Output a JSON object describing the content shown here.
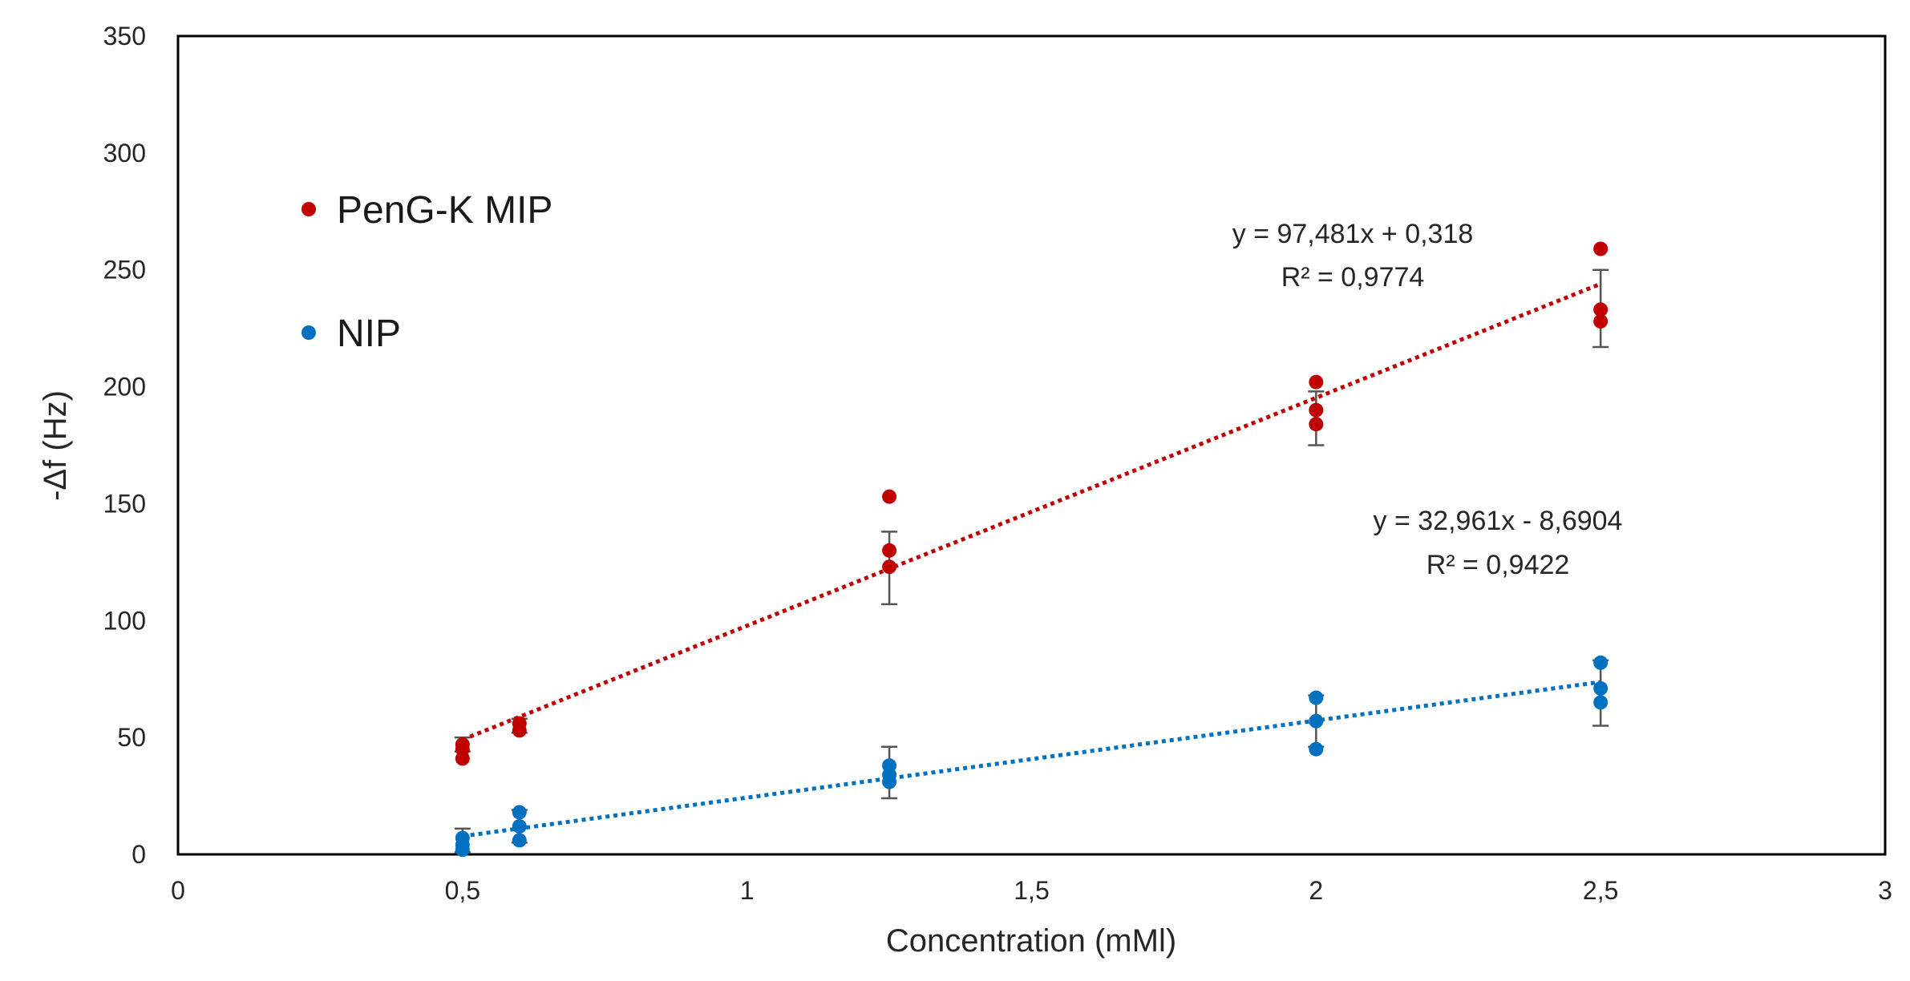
{
  "chart_data": {
    "type": "scatter",
    "title": "",
    "xlabel": "Concentration (mMl)",
    "ylabel": "-Δf (Hz)",
    "xlim": [
      0,
      3
    ],
    "ylim": [
      0,
      350
    ],
    "x_ticks": [
      {
        "value": 0,
        "label": "0"
      },
      {
        "value": 0.5,
        "label": "0,5"
      },
      {
        "value": 1,
        "label": "1"
      },
      {
        "value": 1.5,
        "label": "1,5"
      },
      {
        "value": 2,
        "label": "2"
      },
      {
        "value": 2.5,
        "label": "2,5"
      },
      {
        "value": 3,
        "label": "3"
      }
    ],
    "y_ticks": [
      {
        "value": 0,
        "label": "0"
      },
      {
        "value": 50,
        "label": "50"
      },
      {
        "value": 100,
        "label": "100"
      },
      {
        "value": 150,
        "label": "150"
      },
      {
        "value": 200,
        "label": "200"
      },
      {
        "value": 250,
        "label": "250"
      },
      {
        "value": 300,
        "label": "300"
      },
      {
        "value": 350,
        "label": "350"
      }
    ],
    "grid": false,
    "legend_position": "top-left",
    "series": [
      {
        "name": "PenG-K MIP",
        "color": "#c00000",
        "points": [
          {
            "x": 0.5,
            "y": 47
          },
          {
            "x": 0.5,
            "y": 41
          },
          {
            "x": 0.5,
            "y": 45
          },
          {
            "x": 0.6,
            "y": 56
          },
          {
            "x": 0.6,
            "y": 53
          },
          {
            "x": 1.25,
            "y": 153
          },
          {
            "x": 1.25,
            "y": 130
          },
          {
            "x": 1.25,
            "y": 123
          },
          {
            "x": 2.0,
            "y": 202
          },
          {
            "x": 2.0,
            "y": 190
          },
          {
            "x": 2.0,
            "y": 184
          },
          {
            "x": 2.5,
            "y": 259
          },
          {
            "x": 2.5,
            "y": 233
          },
          {
            "x": 2.5,
            "y": 228
          }
        ],
        "error_bars": [
          {
            "x": 0.5,
            "low": 44,
            "high": 50
          },
          {
            "x": 0.6,
            "low": 52,
            "high": 58
          },
          {
            "x": 1.25,
            "low": 107,
            "high": 138
          },
          {
            "x": 2.0,
            "low": 175,
            "high": 198
          },
          {
            "x": 2.5,
            "low": 217,
            "high": 250
          }
        ],
        "trendline": {
          "slope": 97.481,
          "intercept": 0.318,
          "x_range": [
            0.5,
            2.5
          ]
        },
        "equation": "y = 97,481x + 0,318",
        "r_squared": "R² = 0,9774"
      },
      {
        "name": "NIP",
        "color": "#0070c0",
        "points": [
          {
            "x": 0.5,
            "y": 7
          },
          {
            "x": 0.5,
            "y": 4
          },
          {
            "x": 0.5,
            "y": 2
          },
          {
            "x": 0.6,
            "y": 18
          },
          {
            "x": 0.6,
            "y": 12
          },
          {
            "x": 0.6,
            "y": 6
          },
          {
            "x": 1.25,
            "y": 38
          },
          {
            "x": 1.25,
            "y": 34
          },
          {
            "x": 1.25,
            "y": 31
          },
          {
            "x": 2.0,
            "y": 67
          },
          {
            "x": 2.0,
            "y": 57
          },
          {
            "x": 2.0,
            "y": 45
          },
          {
            "x": 2.5,
            "y": 82
          },
          {
            "x": 2.5,
            "y": 71
          },
          {
            "x": 2.5,
            "y": 65
          }
        ],
        "error_bars": [
          {
            "x": 0.5,
            "low": 1,
            "high": 11
          },
          {
            "x": 0.6,
            "low": 5,
            "high": 19
          },
          {
            "x": 1.25,
            "low": 24,
            "high": 46
          },
          {
            "x": 2.0,
            "low": 46,
            "high": 68
          },
          {
            "x": 2.5,
            "low": 55,
            "high": 83
          }
        ],
        "trendline": {
          "slope": 32.961,
          "intercept": -8.6904,
          "x_range": [
            0.5,
            2.5
          ]
        },
        "equation": "y = 32,961x - 8,6904",
        "r_squared": "R² = 0,9422"
      }
    ]
  }
}
